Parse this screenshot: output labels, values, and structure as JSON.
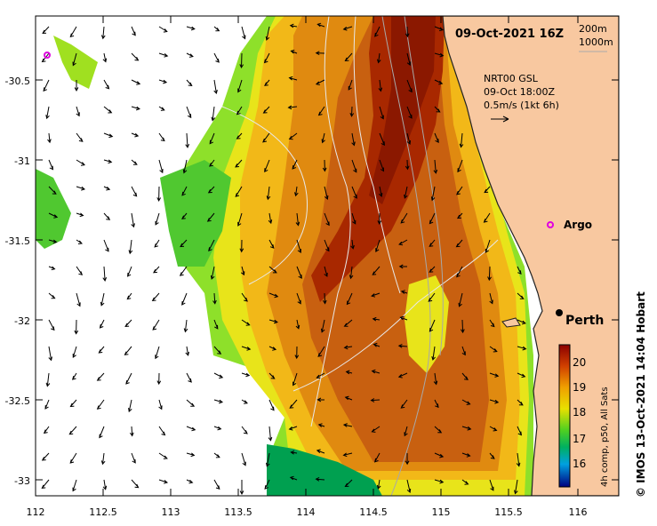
{
  "title_date": "09-Oct-2021 16Z",
  "depth_legend": {
    "line1": "200m",
    "line2": "1000m"
  },
  "current_info": {
    "line1": "NRT00 GSL",
    "line2": "09-Oct 18:00Z",
    "line3": "0.5m/s (1kt 6h)"
  },
  "labels": {
    "argo": "Argo",
    "perth": "Perth"
  },
  "colorbar": {
    "title": "4h comp, p50, All Sats",
    "ticks": [
      "20",
      "19",
      "18",
      "17",
      "16"
    ],
    "min": 15.5,
    "max": 20.5
  },
  "credit": "© IMOS 13-Oct-2021 14:04 Hobart",
  "axes": {
    "x_ticks": [
      "112",
      "112.5",
      "113",
      "113.5",
      "114",
      "114.5",
      "115",
      "115.5",
      "116"
    ],
    "y_ticks": [
      "-30.5",
      "-31",
      "-31.5",
      "-32",
      "-32.5",
      "-33"
    ]
  },
  "colors": {
    "land": "#f8c8a0",
    "coast": "#222222",
    "warm": "#b03000",
    "cool": "#00a040"
  }
}
